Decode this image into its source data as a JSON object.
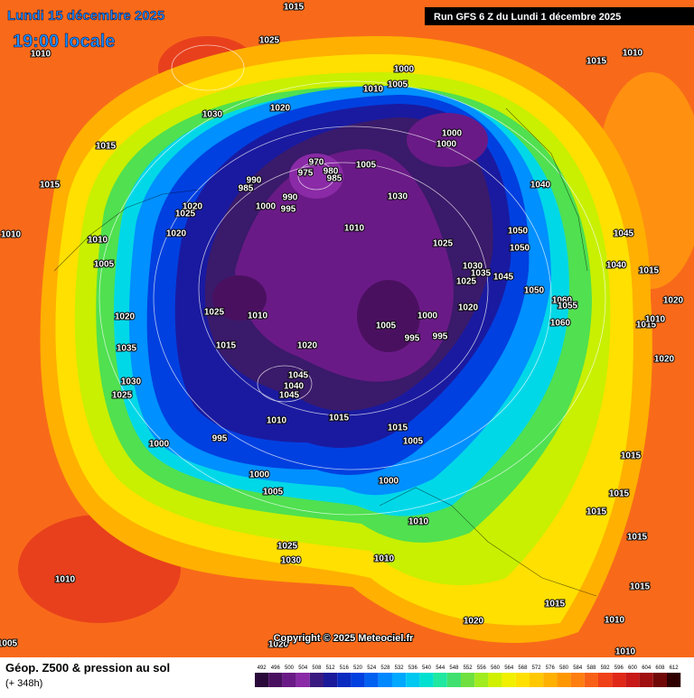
{
  "header": {
    "date": "Lundi 15 décembre 2025",
    "time": "19:00 locale",
    "run": "Run GFS 6 Z du Lundi 1 décembre 2025"
  },
  "copyright": "Copyright © 2025 Meteociel.fr",
  "footer": {
    "title": "Géop. Z500 & pression au sol",
    "lead": "(+ 348h)"
  },
  "scale": {
    "values": [
      492,
      496,
      500,
      504,
      508,
      512,
      516,
      520,
      524,
      528,
      532,
      536,
      540,
      544,
      548,
      552,
      556,
      560,
      564,
      568,
      572,
      576,
      580,
      584,
      588,
      592,
      596,
      600,
      604,
      608,
      612
    ],
    "colors": [
      "#2a0a3a",
      "#4a1060",
      "#6a1a86",
      "#8a2aa6",
      "#3a1a80",
      "#1a1a9a",
      "#0a2ac0",
      "#0040e0",
      "#0060f0",
      "#0088ff",
      "#00a8ff",
      "#00c8f0",
      "#00e0d0",
      "#20e8a0",
      "#40e070",
      "#70e040",
      "#a0ec20",
      "#d0f000",
      "#f0f000",
      "#ffe000",
      "#ffc800",
      "#ffb000",
      "#ff9800",
      "#ff7e10",
      "#f86018",
      "#f04018",
      "#e02818",
      "#c81818",
      "#a01010",
      "#700808",
      "#300000"
    ]
  },
  "isobar_labels": [
    1015,
    1025,
    1010,
    1030,
    1020,
    1015,
    1015,
    1010,
    1010,
    1005,
    1020,
    1035,
    1030,
    1025,
    1025,
    1015,
    1010,
    1020,
    1045,
    1040,
    1045,
    1010,
    995,
    1000,
    1000,
    1005,
    1015,
    1015,
    1005,
    1000,
    1010,
    1025,
    1030,
    1010,
    1010,
    1020,
    1015,
    1020,
    1010,
    1010,
    1015,
    1015,
    1015,
    1015,
    1015,
    1020,
    1015,
    1010,
    1020,
    1015,
    1040,
    1045,
    1040,
    1050,
    1050,
    1045,
    1050,
    1060,
    1055,
    1060,
    1030,
    1035,
    1025,
    1020,
    1025,
    1030,
    1010,
    1005,
    1000,
    1005,
    1010,
    1000,
    1000,
    970,
    975,
    980,
    985,
    990,
    985,
    990,
    1000,
    995,
    1020,
    1025,
    1020,
    1000,
    1005,
    995,
    995,
    1015,
    1010,
    1005
  ]
}
